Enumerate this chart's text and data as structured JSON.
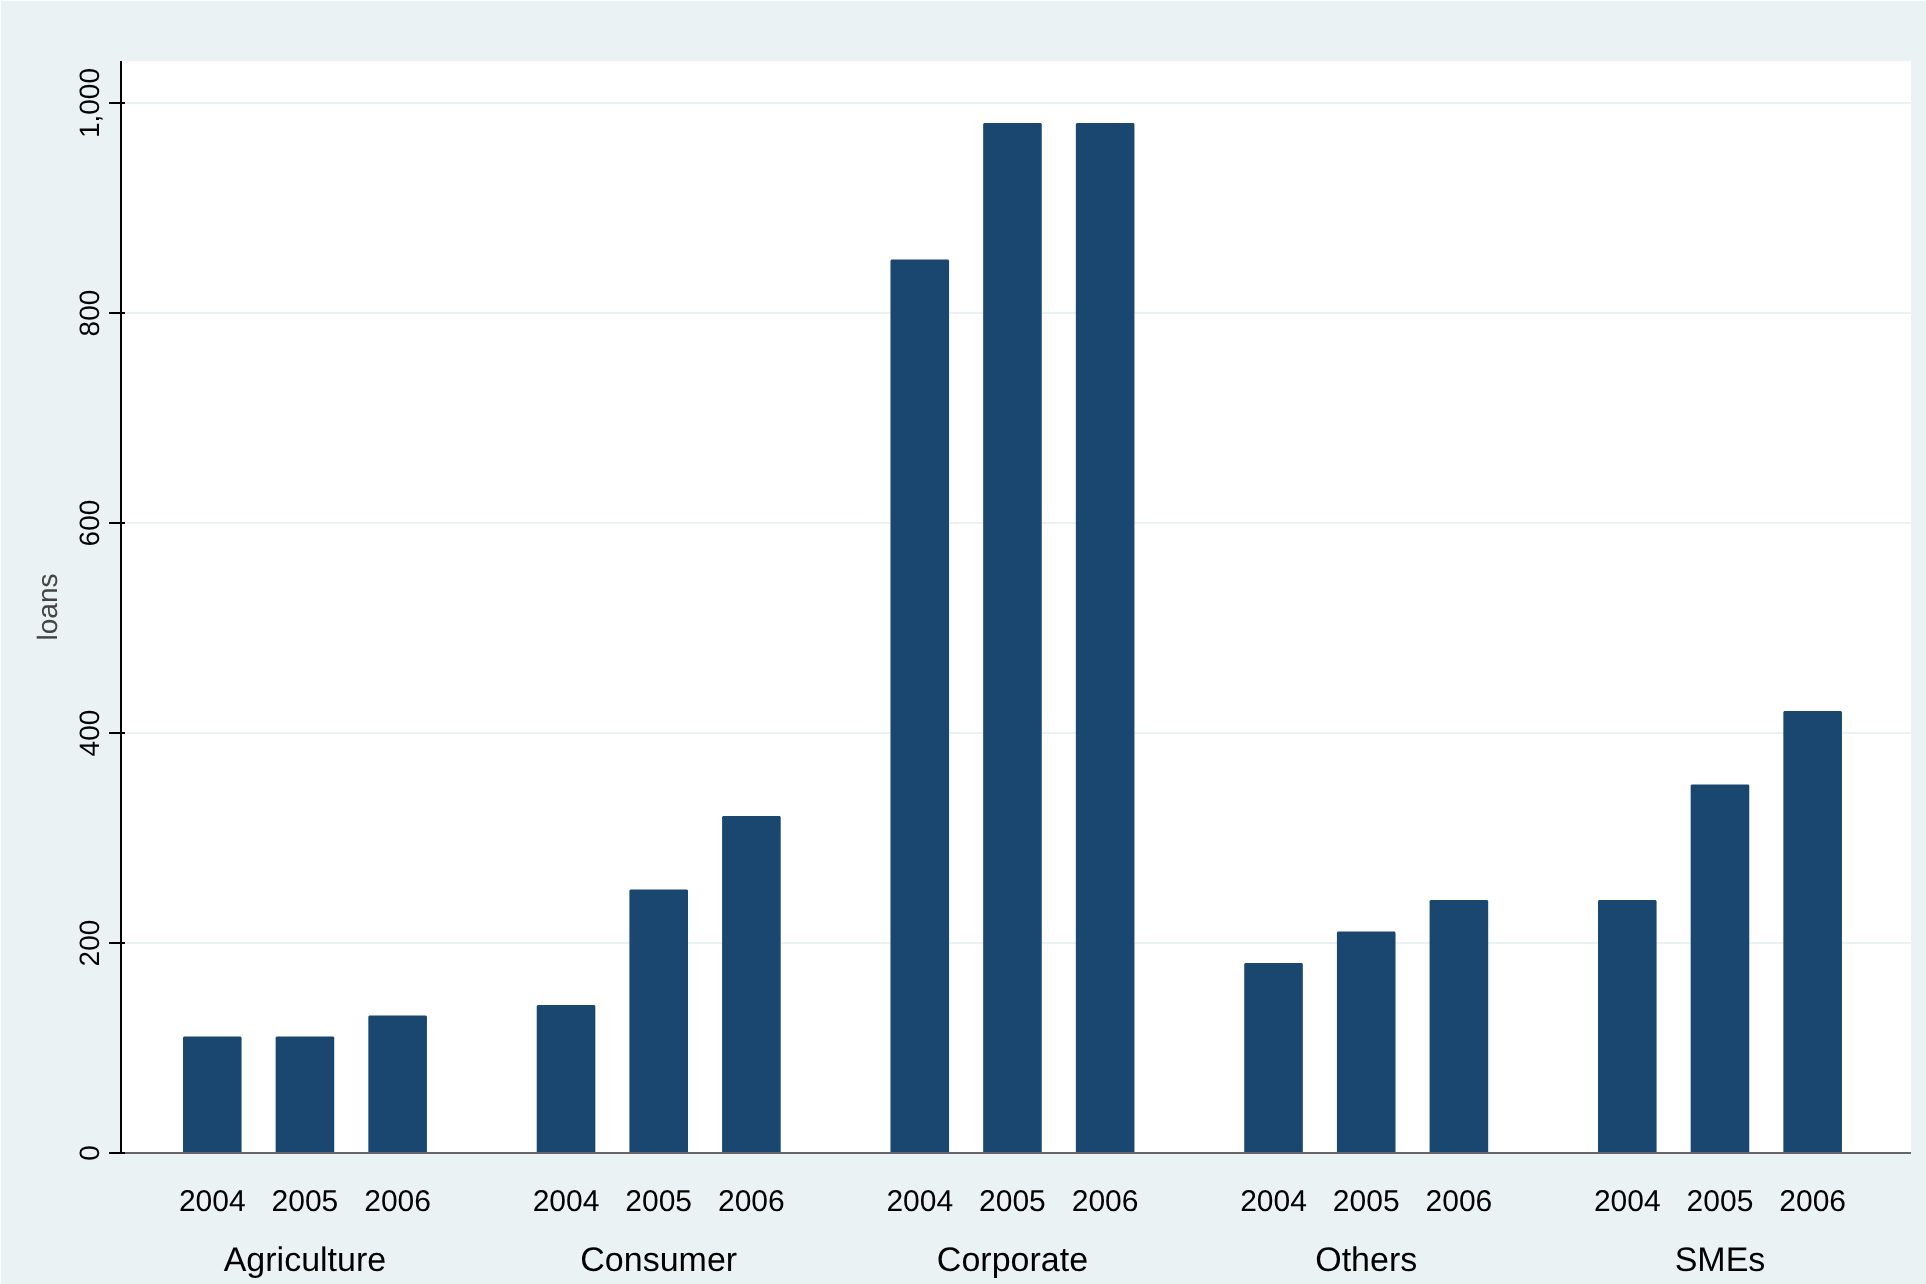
{
  "chart_data": {
    "type": "bar",
    "ylabel": "loans",
    "categories": [
      "Agriculture",
      "Consumer",
      "Corporate",
      "Others",
      "SMEs"
    ],
    "series": [
      {
        "name": "2004",
        "color": "#1a476f",
        "values": [
          110,
          140,
          850,
          180,
          240
        ]
      },
      {
        "name": "2005",
        "color": "#1a476f",
        "values": [
          110,
          250,
          980,
          210,
          350
        ]
      },
      {
        "name": "2006",
        "color": "#1a476f",
        "values": [
          130,
          320,
          980,
          240,
          420
        ]
      }
    ],
    "ylim": [
      0,
      1040
    ],
    "yticks": [
      0,
      200,
      400,
      600,
      800,
      {
        "value": 1000,
        "label": "1,000"
      }
    ],
    "grid": "y"
  }
}
